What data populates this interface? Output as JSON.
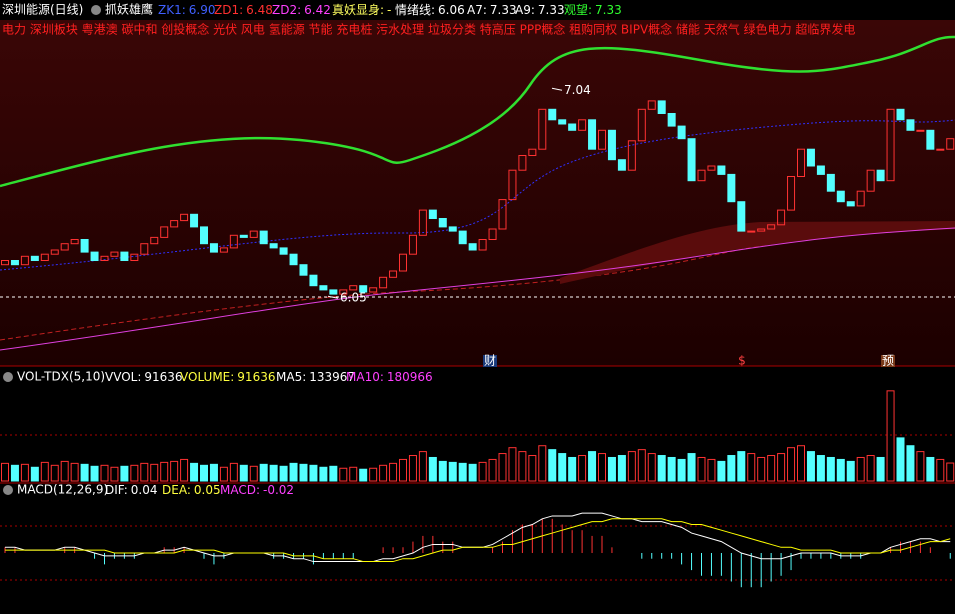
{
  "header": {
    "symbol": "深圳能源(日线)",
    "indicator": "抓妖雄鹰",
    "items": [
      {
        "label": "ZK1:",
        "value": "6.90"
      },
      {
        "label": "ZD1:",
        "value": "6.48"
      },
      {
        "label": "ZD2:",
        "value": "6.42"
      },
      {
        "label": "真妖显身:",
        "value": "-"
      },
      {
        "label": "情绪线:",
        "value": "6.06"
      },
      {
        "label": "A7:",
        "value": "7.33"
      },
      {
        "label": "A9:",
        "value": "7.33"
      },
      {
        "label": "观望:",
        "value": "7.33"
      }
    ]
  },
  "concepts": "电力 深圳板块 粤港澳 碳中和 创投概念 光伏 风电 氢能源 节能 充电桩 污水处理 垃圾分类 特高压 PPP概念 租购同权 BIPV概念 储能 天然气 绿色电力 超临界发电",
  "markers": [
    "财",
    "$",
    "预"
  ],
  "volume_header": {
    "title": "VOL-TDX(5,10)",
    "items": [
      {
        "label": "VVOL:",
        "value": "91636"
      },
      {
        "label": "VOLUME:",
        "value": "91636"
      },
      {
        "label": "MA5:",
        "value": "133967"
      },
      {
        "label": "MA10:",
        "value": "180966"
      }
    ]
  },
  "macd_header": {
    "title": "MACD(12,26,9)",
    "items": [
      {
        "label": "DIF:",
        "value": "0.04"
      },
      {
        "label": "DEA:",
        "value": "0.05"
      },
      {
        "label": "MACD:",
        "value": "-0.02"
      }
    ]
  },
  "chart_data": [
    {
      "type": "candlestick",
      "ylim": [
        5.77,
        7.27
      ],
      "up_color": "#ff3232",
      "down_color": "#54ffff",
      "open": [
        6.2,
        6.22,
        6.2,
        6.24,
        6.22,
        6.25,
        6.27,
        6.3,
        6.32,
        6.26,
        6.22,
        6.24,
        6.26,
        6.22,
        6.25,
        6.3,
        6.33,
        6.38,
        6.41,
        6.44,
        6.38,
        6.3,
        6.26,
        6.28,
        6.34,
        6.33,
        6.36,
        6.3,
        6.28,
        6.25,
        6.2,
        6.15,
        6.1,
        6.08,
        6.06,
        6.08,
        6.1,
        6.07,
        6.09,
        6.14,
        6.17,
        6.25,
        6.34,
        6.46,
        6.42,
        6.38,
        6.36,
        6.3,
        6.27,
        6.32,
        6.37,
        6.51,
        6.65,
        6.72,
        6.75,
        6.94,
        6.89,
        6.87,
        6.84,
        6.89,
        6.75,
        6.84,
        6.7,
        6.65,
        6.79,
        6.94,
        6.98,
        6.92,
        6.86,
        6.8,
        6.6,
        6.65,
        6.67,
        6.63,
        6.5,
        6.36,
        6.36,
        6.37,
        6.39,
        6.46,
        6.62,
        6.75,
        6.67,
        6.63,
        6.55,
        6.5,
        6.48,
        6.55,
        6.65,
        6.6,
        6.94,
        6.89,
        6.84,
        6.84,
        6.75,
        6.75
      ],
      "close": [
        6.22,
        6.2,
        6.24,
        6.22,
        6.25,
        6.27,
        6.3,
        6.32,
        6.26,
        6.22,
        6.24,
        6.26,
        6.22,
        6.25,
        6.3,
        6.33,
        6.38,
        6.41,
        6.44,
        6.38,
        6.3,
        6.26,
        6.28,
        6.34,
        6.33,
        6.36,
        6.3,
        6.28,
        6.25,
        6.2,
        6.15,
        6.1,
        6.08,
        6.06,
        6.08,
        6.1,
        6.07,
        6.09,
        6.14,
        6.17,
        6.25,
        6.34,
        6.46,
        6.42,
        6.38,
        6.36,
        6.3,
        6.27,
        6.32,
        6.37,
        6.51,
        6.65,
        6.72,
        6.75,
        6.94,
        6.89,
        6.87,
        6.84,
        6.89,
        6.75,
        6.84,
        6.7,
        6.65,
        6.79,
        6.94,
        6.98,
        6.92,
        6.86,
        6.8,
        6.6,
        6.65,
        6.67,
        6.63,
        6.5,
        6.36,
        6.36,
        6.37,
        6.39,
        6.46,
        6.62,
        6.75,
        6.67,
        6.63,
        6.55,
        6.5,
        6.48,
        6.55,
        6.65,
        6.6,
        6.94,
        6.89,
        6.84,
        6.84,
        6.75,
        6.75,
        6.8
      ],
      "annotations": [
        {
          "value": 7.04,
          "label": "7.04"
        },
        {
          "value": 6.05,
          "label": "6.05"
        }
      ]
    },
    {
      "type": "bar",
      "ylim": [
        0,
        500000
      ],
      "values": [
        90000,
        80000,
        85000,
        70000,
        95000,
        80000,
        100000,
        90000,
        85000,
        75000,
        80000,
        70000,
        75000,
        80000,
        90000,
        85000,
        95000,
        100000,
        110000,
        90000,
        80000,
        85000,
        70000,
        90000,
        80000,
        75000,
        85000,
        80000,
        75000,
        90000,
        85000,
        80000,
        70000,
        75000,
        65000,
        70000,
        60000,
        65000,
        80000,
        90000,
        110000,
        130000,
        150000,
        120000,
        100000,
        95000,
        90000,
        85000,
        95000,
        110000,
        140000,
        170000,
        150000,
        130000,
        180000,
        160000,
        140000,
        120000,
        130000,
        150000,
        140000,
        120000,
        130000,
        150000,
        160000,
        140000,
        130000,
        120000,
        110000,
        140000,
        120000,
        110000,
        100000,
        130000,
        150000,
        140000,
        120000,
        130000,
        140000,
        170000,
        180000,
        150000,
        130000,
        120000,
        110000,
        100000,
        120000,
        130000,
        120000,
        460000,
        220000,
        180000,
        150000,
        120000,
        110000,
        91636
      ]
    },
    {
      "type": "macd",
      "ylim": [
        -0.2,
        0.2
      ],
      "up_color": "#ff3232",
      "down_color": "#54ffff",
      "values": [
        0.02,
        0.02,
        0,
        0,
        0,
        0,
        0.02,
        0.02,
        0,
        -0.02,
        -0.04,
        -0.02,
        -0.02,
        -0.02,
        0,
        0,
        0.02,
        0.02,
        0.02,
        0,
        -0.02,
        -0.04,
        -0.02,
        0,
        0,
        0,
        0,
        -0.02,
        -0.02,
        -0.02,
        -0.02,
        -0.04,
        -0.02,
        -0.02,
        -0.02,
        -0.02,
        0,
        0,
        0.02,
        0.02,
        0.02,
        0.04,
        0.06,
        0.06,
        0.04,
        0.04,
        0,
        0,
        0,
        0.02,
        0.04,
        0.08,
        0.1,
        0.1,
        0.12,
        0.12,
        0.1,
        0.08,
        0.08,
        0.06,
        0.06,
        0.02,
        0,
        0,
        -0.02,
        -0.02,
        -0.02,
        -0.02,
        -0.04,
        -0.06,
        -0.08,
        -0.08,
        -0.08,
        -0.1,
        -0.12,
        -0.12,
        -0.12,
        -0.1,
        -0.08,
        -0.06,
        -0.02,
        -0.02,
        -0.02,
        -0.02,
        -0.02,
        -0.02,
        -0.02,
        0,
        0,
        0.02,
        0.04,
        0.04,
        0.04,
        0.02,
        0,
        -0.02
      ],
      "series": [
        {
          "name": "DIF",
          "color": "#ffffff",
          "values": [
            0.02,
            0.02,
            0.01,
            0.01,
            0.01,
            0.01,
            0.02,
            0.02,
            0.01,
            0,
            -0.01,
            -0.01,
            -0.01,
            -0.01,
            0,
            0,
            0.01,
            0.01,
            0.02,
            0.01,
            0,
            -0.01,
            -0.01,
            0,
            0,
            0,
            0,
            -0.01,
            -0.01,
            -0.02,
            -0.02,
            -0.03,
            -0.03,
            -0.03,
            -0.03,
            -0.03,
            -0.03,
            -0.03,
            -0.02,
            -0.02,
            -0.01,
            0,
            0.02,
            0.03,
            0.03,
            0.03,
            0.02,
            0.02,
            0.02,
            0.03,
            0.05,
            0.07,
            0.09,
            0.1,
            0.12,
            0.13,
            0.13,
            0.13,
            0.14,
            0.14,
            0.14,
            0.13,
            0.12,
            0.12,
            0.11,
            0.11,
            0.11,
            0.1,
            0.09,
            0.07,
            0.06,
            0.05,
            0.04,
            0.02,
            0,
            -0.01,
            -0.02,
            -0.02,
            -0.02,
            -0.01,
            0,
            0,
            0,
            0,
            -0.01,
            -0.01,
            -0.01,
            0,
            0,
            0.02,
            0.03,
            0.04,
            0.05,
            0.05,
            0.04,
            0.04
          ]
        },
        {
          "name": "DEA",
          "color": "#ffff00",
          "values": [
            0.01,
            0.01,
            0.01,
            0.01,
            0.01,
            0.01,
            0.01,
            0.01,
            0.01,
            0.01,
            0.01,
            0,
            0,
            0,
            0,
            0,
            0,
            0,
            0.01,
            0.01,
            0.01,
            0.01,
            0,
            0,
            0,
            0,
            0,
            0,
            0,
            -0.01,
            -0.01,
            -0.01,
            -0.02,
            -0.02,
            -0.02,
            -0.02,
            -0.03,
            -0.03,
            -0.03,
            -0.03,
            -0.02,
            -0.02,
            -0.01,
            0,
            0.01,
            0.01,
            0.02,
            0.02,
            0.02,
            0.02,
            0.03,
            0.03,
            0.04,
            0.05,
            0.06,
            0.07,
            0.08,
            0.09,
            0.1,
            0.11,
            0.11,
            0.12,
            0.12,
            0.12,
            0.12,
            0.12,
            0.12,
            0.11,
            0.11,
            0.1,
            0.1,
            0.09,
            0.08,
            0.07,
            0.06,
            0.05,
            0.04,
            0.03,
            0.02,
            0.02,
            0.01,
            0.01,
            0.01,
            0.01,
            0,
            0,
            0,
            0,
            0,
            0.01,
            0.01,
            0.02,
            0.03,
            0.04,
            0.04,
            0.05
          ]
        }
      ]
    }
  ]
}
